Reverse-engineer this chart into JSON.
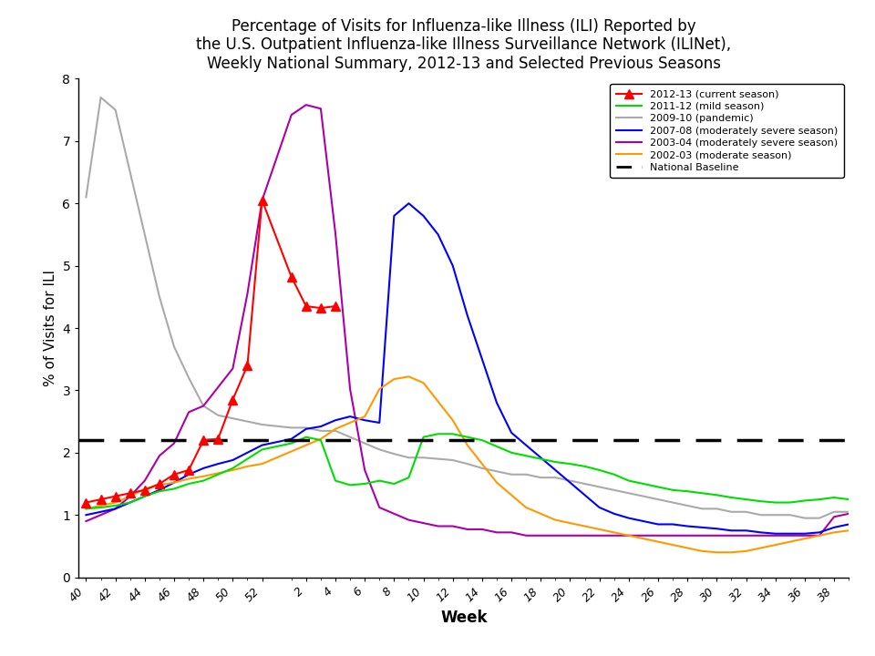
{
  "title": "Percentage of Visits for Influenza-like Illness (ILI) Reported by\nthe U.S. Outpatient Influenza-like Illness Surveillance Network (ILINet),\nWeekly National Summary, 2012-13 and Selected Previous Seasons",
  "xlabel": "Week",
  "ylabel": "% of Visits for ILI",
  "ylim": [
    0,
    8
  ],
  "yticks": [
    0,
    1,
    2,
    3,
    4,
    5,
    6,
    7,
    8
  ],
  "national_baseline": 2.2,
  "x_labels": [
    "40",
    "42",
    "44",
    "46",
    "48",
    "50",
    "52",
    "2",
    "4",
    "6",
    "8",
    "10",
    "12",
    "14",
    "16",
    "18",
    "20",
    "22",
    "24",
    "26",
    "28",
    "30",
    "32",
    "34",
    "36",
    "38"
  ],
  "season_2012_13": {
    "x": [
      40,
      41,
      42,
      43,
      44,
      45,
      46,
      47,
      48,
      49,
      50,
      51,
      52,
      1,
      2,
      3,
      4
    ],
    "y": [
      1.2,
      1.25,
      1.3,
      1.35,
      1.4,
      1.5,
      1.65,
      1.72,
      2.2,
      2.22,
      2.85,
      3.4,
      6.05,
      4.82,
      4.35,
      4.32,
      4.35
    ],
    "color": "#ff0000"
  },
  "season_2011_12": {
    "x": [
      40,
      41,
      42,
      43,
      44,
      45,
      46,
      47,
      48,
      49,
      50,
      51,
      52,
      1,
      2,
      3,
      4,
      5,
      6,
      7,
      8,
      9,
      10,
      11,
      12,
      13,
      14,
      15,
      16,
      17,
      18,
      19,
      20,
      21,
      22,
      23,
      24,
      25,
      26,
      27,
      28,
      29,
      30,
      31,
      32,
      33,
      34,
      35,
      36,
      37,
      38,
      39
    ],
    "y": [
      1.1,
      1.12,
      1.15,
      1.2,
      1.3,
      1.38,
      1.42,
      1.5,
      1.55,
      1.65,
      1.75,
      1.9,
      2.05,
      2.15,
      2.25,
      2.2,
      1.55,
      1.48,
      1.5,
      1.55,
      1.5,
      1.6,
      2.25,
      2.3,
      2.3,
      2.25,
      2.2,
      2.1,
      2.0,
      1.95,
      1.9,
      1.85,
      1.82,
      1.78,
      1.72,
      1.65,
      1.55,
      1.5,
      1.45,
      1.4,
      1.38,
      1.35,
      1.32,
      1.28,
      1.25,
      1.22,
      1.2,
      1.2,
      1.23,
      1.25,
      1.28,
      1.25
    ],
    "color": "#00dd00"
  },
  "season_2009_10": {
    "x": [
      40,
      41,
      42,
      43,
      44,
      45,
      46,
      47,
      48,
      49,
      50,
      51,
      52,
      1,
      2,
      3,
      4,
      5,
      6,
      7,
      8,
      9,
      10,
      11,
      12,
      13,
      14,
      15,
      16,
      17,
      18,
      19,
      20,
      21,
      22,
      23,
      24,
      25,
      26,
      27,
      28,
      29,
      30,
      31,
      32,
      33,
      34,
      35,
      36,
      37,
      38,
      39
    ],
    "y": [
      6.1,
      7.7,
      7.5,
      6.5,
      5.5,
      4.5,
      3.7,
      3.2,
      2.75,
      2.6,
      2.55,
      2.5,
      2.45,
      2.4,
      2.4,
      2.35,
      2.35,
      2.25,
      2.15,
      2.05,
      1.98,
      1.92,
      1.92,
      1.9,
      1.88,
      1.82,
      1.75,
      1.7,
      1.65,
      1.65,
      1.6,
      1.6,
      1.55,
      1.5,
      1.45,
      1.4,
      1.35,
      1.3,
      1.25,
      1.2,
      1.15,
      1.1,
      1.1,
      1.05,
      1.05,
      1.0,
      1.0,
      1.0,
      0.95,
      0.95,
      1.05,
      1.05
    ],
    "color": "#aaaaaa"
  },
  "season_2007_08": {
    "x": [
      40,
      41,
      42,
      43,
      44,
      45,
      46,
      47,
      48,
      49,
      50,
      51,
      52,
      1,
      2,
      3,
      4,
      5,
      6,
      7,
      8,
      9,
      10,
      11,
      12,
      13,
      14,
      15,
      16,
      17,
      18,
      19,
      20,
      21,
      22,
      23,
      24,
      25,
      26,
      27,
      28,
      29,
      30,
      31,
      32,
      33,
      34,
      35,
      36,
      37,
      38,
      39
    ],
    "y": [
      1.0,
      1.05,
      1.1,
      1.2,
      1.3,
      1.4,
      1.52,
      1.65,
      1.75,
      1.82,
      1.88,
      2.0,
      2.12,
      2.22,
      2.38,
      2.42,
      2.52,
      2.58,
      2.52,
      2.48,
      5.8,
      6.0,
      5.8,
      5.5,
      5.0,
      4.2,
      3.5,
      2.8,
      2.32,
      2.12,
      1.92,
      1.72,
      1.52,
      1.32,
      1.12,
      1.02,
      0.95,
      0.9,
      0.85,
      0.85,
      0.82,
      0.8,
      0.78,
      0.75,
      0.75,
      0.72,
      0.7,
      0.7,
      0.7,
      0.72,
      0.8,
      0.85
    ],
    "color": "#0000ff"
  },
  "season_2003_04": {
    "x": [
      40,
      41,
      42,
      43,
      44,
      45,
      46,
      47,
      48,
      49,
      50,
      51,
      52,
      1,
      2,
      3,
      4,
      5,
      6,
      7,
      8,
      9,
      10,
      11,
      12,
      13,
      14,
      15,
      16,
      17,
      18,
      19,
      20,
      21,
      22,
      23,
      24,
      25,
      26,
      27,
      28,
      29,
      30,
      31,
      32,
      33,
      34,
      35,
      36,
      37,
      38,
      39
    ],
    "y": [
      0.9,
      1.0,
      1.1,
      1.3,
      1.55,
      1.95,
      2.15,
      2.65,
      2.75,
      3.05,
      3.35,
      4.55,
      6.05,
      7.42,
      7.58,
      7.52,
      5.52,
      3.02,
      1.72,
      1.12,
      1.02,
      0.92,
      0.87,
      0.82,
      0.82,
      0.77,
      0.77,
      0.72,
      0.72,
      0.67,
      0.67,
      0.67,
      0.67,
      0.67,
      0.67,
      0.67,
      0.67,
      0.67,
      0.67,
      0.67,
      0.67,
      0.67,
      0.67,
      0.67,
      0.67,
      0.67,
      0.67,
      0.67,
      0.67,
      0.67,
      0.97,
      1.02
    ],
    "color": "#aa00aa"
  },
  "season_2002_03": {
    "x": [
      40,
      41,
      42,
      43,
      44,
      45,
      46,
      47,
      48,
      49,
      50,
      51,
      52,
      1,
      2,
      3,
      4,
      5,
      6,
      7,
      8,
      9,
      10,
      11,
      12,
      13,
      14,
      15,
      16,
      17,
      18,
      19,
      20,
      21,
      22,
      23,
      24,
      25,
      26,
      27,
      28,
      29,
      30,
      31,
      32,
      33,
      34,
      35,
      36,
      37,
      38,
      39
    ],
    "y": [
      1.1,
      1.15,
      1.2,
      1.3,
      1.42,
      1.48,
      1.52,
      1.58,
      1.62,
      1.67,
      1.72,
      1.78,
      1.82,
      2.02,
      2.12,
      2.22,
      2.38,
      2.48,
      2.58,
      3.02,
      3.18,
      3.22,
      3.12,
      2.82,
      2.52,
      2.12,
      1.82,
      1.52,
      1.32,
      1.12,
      1.02,
      0.92,
      0.87,
      0.82,
      0.77,
      0.72,
      0.67,
      0.62,
      0.57,
      0.52,
      0.47,
      0.42,
      0.4,
      0.4,
      0.42,
      0.47,
      0.52,
      0.57,
      0.62,
      0.67,
      0.72,
      0.75
    ],
    "color": "#ff9900"
  },
  "legend_labels": [
    "2012-13 (current season)",
    "2011-12 (mild season)",
    "2009-10 (pandemic)",
    "2007-08 (moderately severe season)",
    "2003-04 (moderately severe season)",
    "2002-03 (moderate season)",
    "National Baseline"
  ],
  "legend_colors": [
    "#ff0000",
    "#00dd00",
    "#aaaaaa",
    "#0000ff",
    "#aa00aa",
    "#ff9900",
    "#000000"
  ],
  "figsize": [
    9.6,
    7.2
  ],
  "dpi": 100
}
